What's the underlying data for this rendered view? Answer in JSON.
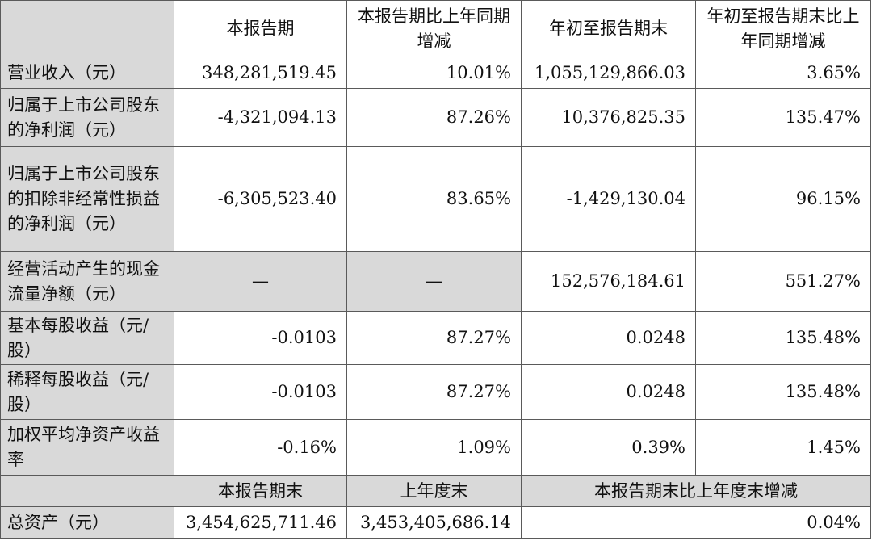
{
  "header": {
    "corner": "",
    "col1": "本报告期",
    "col2": "本报告期比上年同期增减",
    "col3": "年初至报告期末",
    "col4": "年初至报告期末比上年同期增减"
  },
  "rows": [
    {
      "label": "营业收入（元）",
      "v1": "348,281,519.45",
      "v2": "10.01%",
      "v3": "1,055,129,866.03",
      "v4": "3.65%"
    },
    {
      "label": "归属于上市公司股东的净利润（元）",
      "v1": "-4,321,094.13",
      "v2": "87.26%",
      "v3": "10,376,825.35",
      "v4": "135.47%"
    },
    {
      "label": "归属于上市公司股东的扣除非经常性损益的净利润（元）",
      "v1": "-6,305,523.40",
      "v2": "83.65%",
      "v3": "-1,429,130.04",
      "v4": "96.15%"
    },
    {
      "label": "经营活动产生的现金流量净额（元）",
      "v1": "—",
      "v2": "—",
      "v3": "152,576,184.61",
      "v4": "551.27%"
    },
    {
      "label": "基本每股收益（元/股）",
      "v1": "-0.0103",
      "v2": "87.27%",
      "v3": "0.0248",
      "v4": "135.48%"
    },
    {
      "label": "稀释每股收益（元/股）",
      "v1": "-0.0103",
      "v2": "87.27%",
      "v3": "0.0248",
      "v4": "135.48%"
    },
    {
      "label": "加权平均净资产收益率",
      "v1": "-0.16%",
      "v2": "1.09%",
      "v3": "0.39%",
      "v4": "1.45%"
    }
  ],
  "sub_header": {
    "corner": "",
    "col1": "本报告期末",
    "col2": "上年度末",
    "col3": "本报告期末比上年度末增减"
  },
  "asset_row": {
    "label": "总资产（元）",
    "v1": "3,454,625,711.46",
    "v2": "3,453,405,686.14",
    "v3": "0.04%"
  }
}
